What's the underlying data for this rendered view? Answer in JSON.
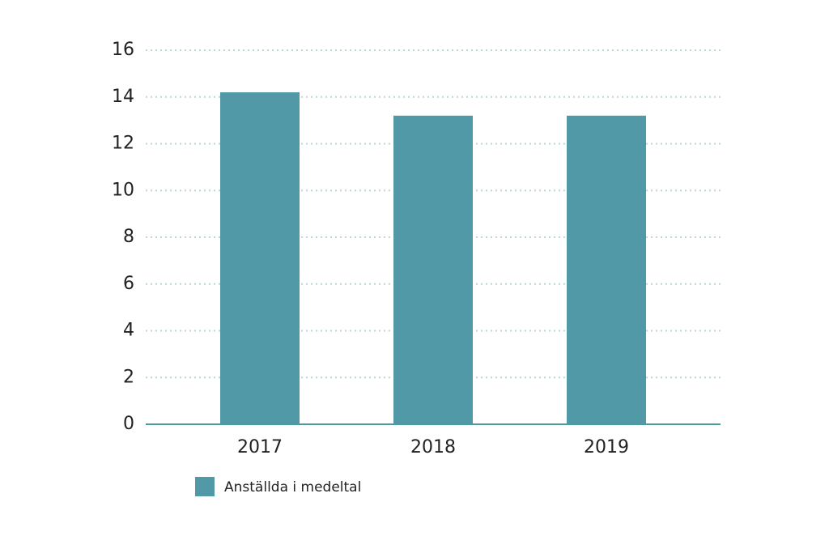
{
  "chart_data": {
    "type": "bar",
    "categories": [
      "2017",
      "2018",
      "2019"
    ],
    "series": [
      {
        "name": "Anställda i medeltal",
        "color": "#5199a6",
        "values": [
          14.2,
          13.2,
          13.2
        ]
      }
    ],
    "ylim": [
      0,
      16
    ],
    "yticks": [
      0,
      2,
      4,
      6,
      8,
      10,
      12,
      14,
      16
    ],
    "grid": true
  }
}
